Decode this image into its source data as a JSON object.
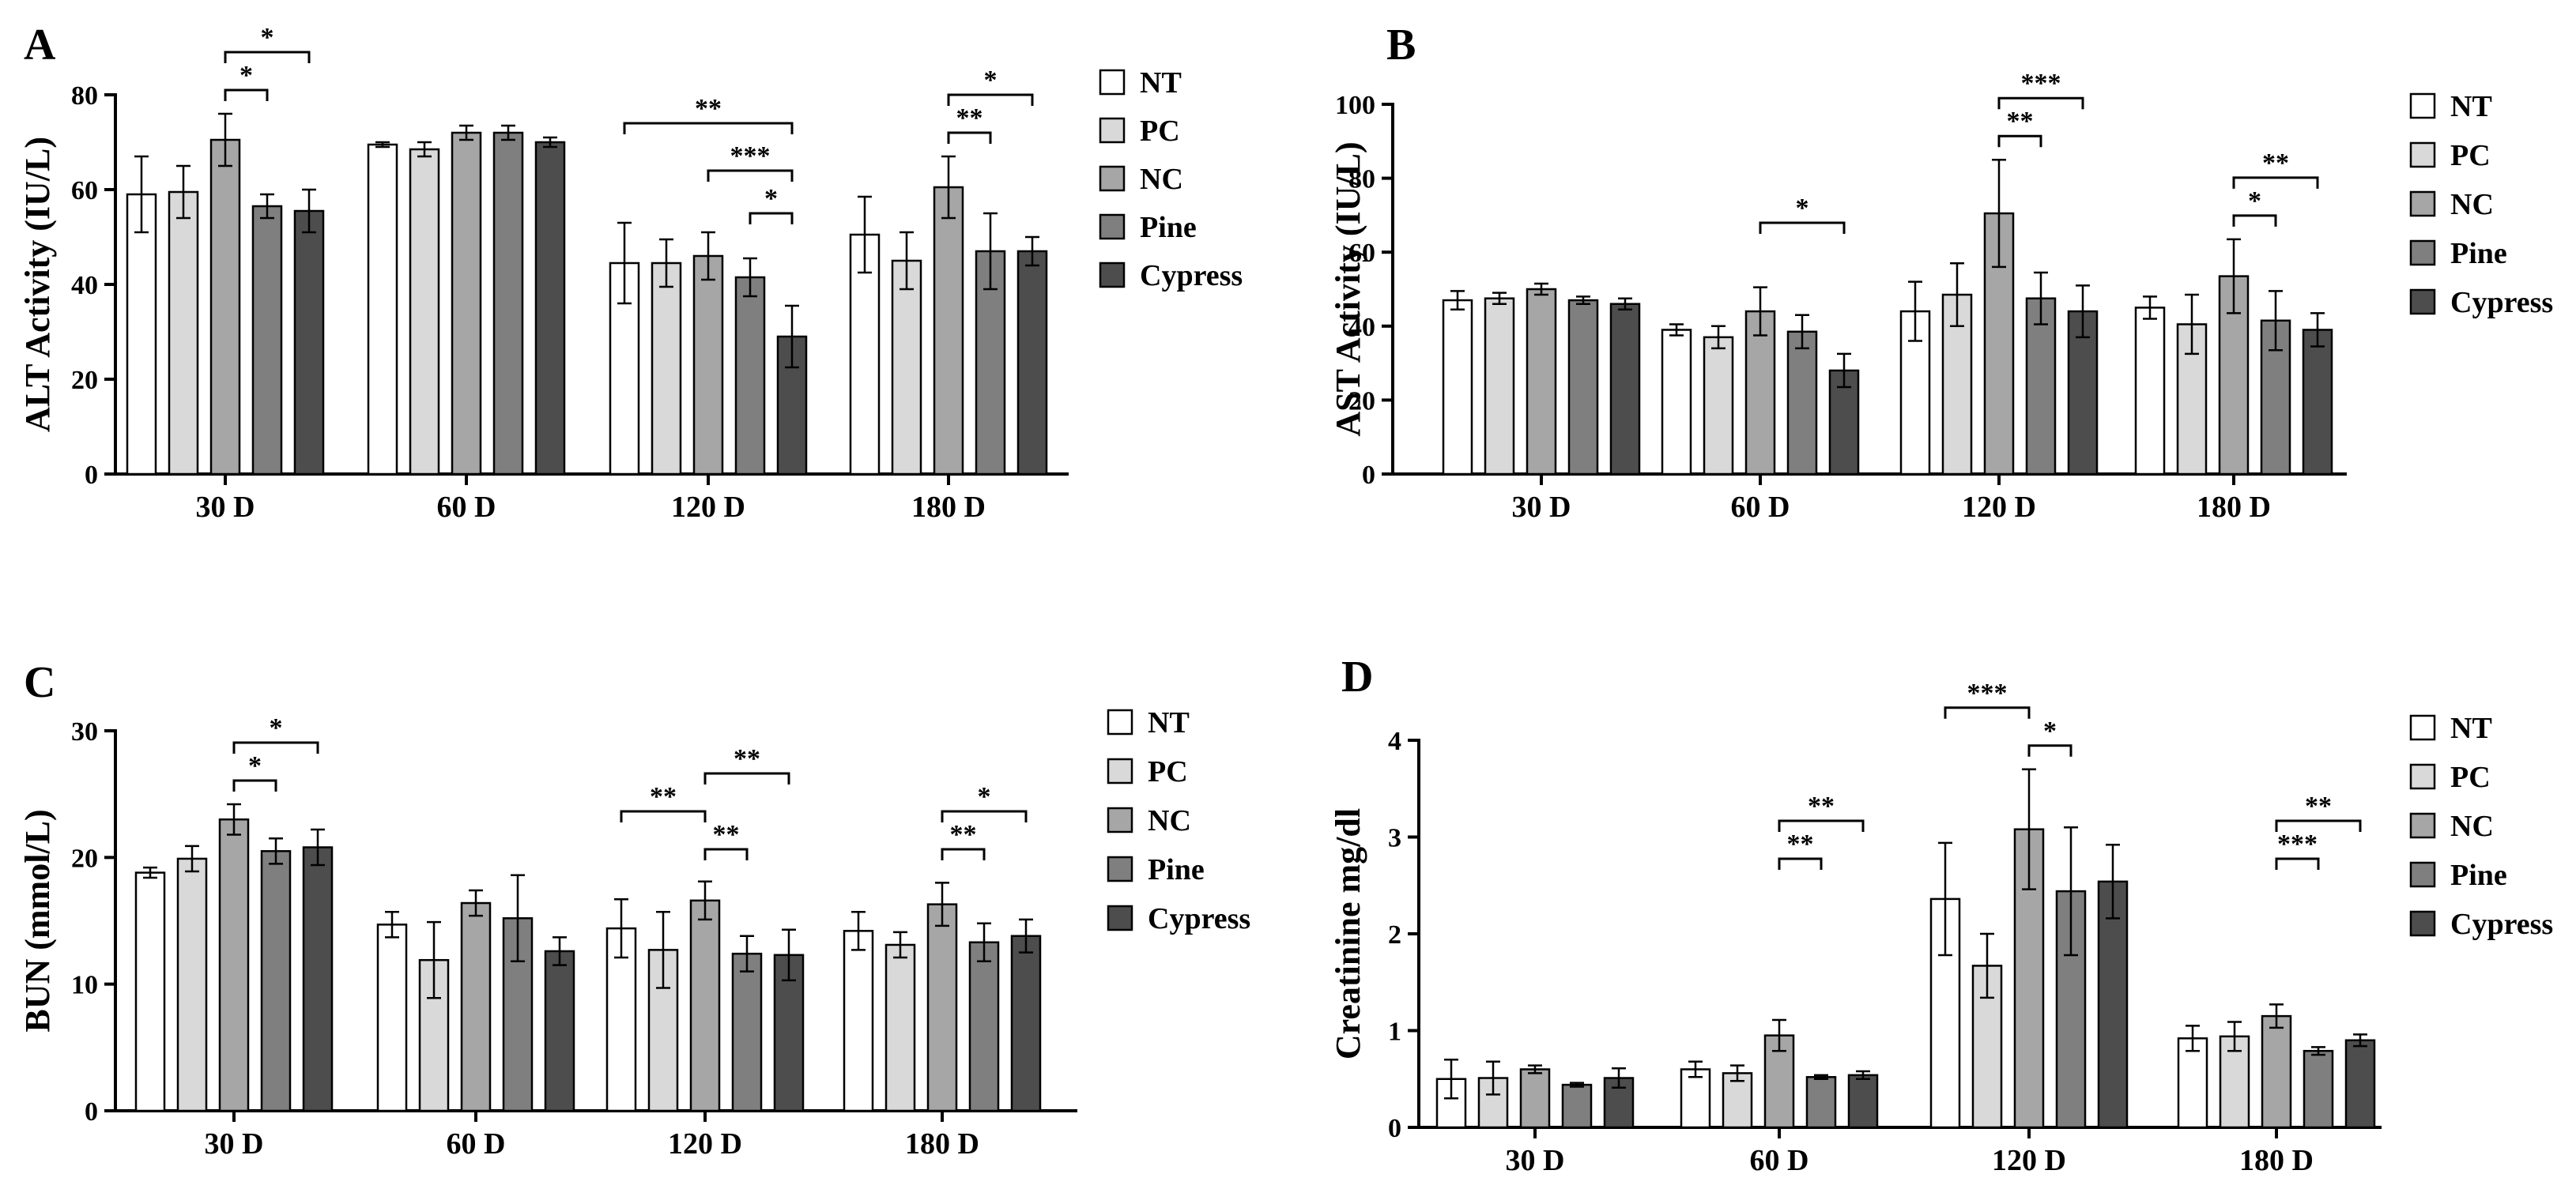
{
  "legend_series": [
    "NT",
    "PC",
    "NC",
    "Pine",
    "Cypress"
  ],
  "series_colors": [
    "#ffffff",
    "#d9d9d9",
    "#a6a6a6",
    "#7f7f7f",
    "#4d4d4d"
  ],
  "chart_data": [
    {
      "panel": "A",
      "type": "bar",
      "ylabel": "ALT Activity (IU/L)",
      "categories": [
        "30 D",
        "60 D",
        "120 D",
        "180 D"
      ],
      "ylim": [
        0,
        80
      ],
      "yticks": [
        0,
        20,
        40,
        60,
        80
      ],
      "grid": false,
      "legend_position": "right",
      "series": [
        {
          "name": "NT",
          "values": [
            59,
            69.5,
            44.5,
            50.5
          ],
          "errors": [
            8,
            0.5,
            8.5,
            8
          ]
        },
        {
          "name": "PC",
          "values": [
            59.5,
            68.5,
            44.5,
            45
          ],
          "errors": [
            5.5,
            1.5,
            5,
            6
          ]
        },
        {
          "name": "NC",
          "values": [
            70.5,
            72,
            46,
            60.5
          ],
          "errors": [
            5.5,
            1.5,
            5,
            6.5
          ]
        },
        {
          "name": "Pine",
          "values": [
            56.5,
            72,
            41.5,
            47
          ],
          "errors": [
            2.5,
            1.5,
            4,
            8
          ]
        },
        {
          "name": "Cypress",
          "values": [
            55.5,
            70,
            29,
            47
          ],
          "errors": [
            4.5,
            1,
            6.5,
            3
          ]
        }
      ],
      "significance": [
        {
          "category": 0,
          "from": 2,
          "to": 3,
          "label": "*"
        },
        {
          "category": 0,
          "from": 2,
          "to": 4,
          "label": "*"
        },
        {
          "category": 2,
          "from": 3,
          "to": 4,
          "label": "*"
        },
        {
          "category": 2,
          "from": 2,
          "to": 4,
          "label": "***"
        },
        {
          "category": 2,
          "from": 0,
          "to": 4,
          "label": "**"
        },
        {
          "category": 3,
          "from": 2,
          "to": 3,
          "label": "**"
        },
        {
          "category": 3,
          "from": 2,
          "to": 4,
          "label": "*"
        }
      ]
    },
    {
      "panel": "B",
      "type": "bar",
      "ylabel": "AST Activity (IU/L)",
      "categories": [
        "30 D",
        "60 D",
        "120 D",
        "180 D"
      ],
      "ylim": [
        0,
        100
      ],
      "yticks": [
        0,
        20,
        40,
        60,
        80,
        100
      ],
      "grid": false,
      "legend_position": "right",
      "series": [
        {
          "name": "NT",
          "values": [
            47,
            39,
            44,
            45
          ],
          "errors": [
            2.5,
            1.5,
            8,
            3
          ]
        },
        {
          "name": "PC",
          "values": [
            47.5,
            37,
            48.5,
            40.5
          ],
          "errors": [
            1.5,
            3,
            8.5,
            8
          ]
        },
        {
          "name": "NC",
          "values": [
            50,
            44,
            70.5,
            53.5
          ],
          "errors": [
            1.5,
            6.5,
            14.5,
            10
          ]
        },
        {
          "name": "Pine",
          "values": [
            47,
            38.5,
            47.5,
            41.5
          ],
          "errors": [
            1,
            4.5,
            7,
            8
          ]
        },
        {
          "name": "Cypress",
          "values": [
            46,
            28,
            44,
            39
          ],
          "errors": [
            1.5,
            4.5,
            7,
            4.5
          ]
        }
      ],
      "significance": [
        {
          "category": 1,
          "from": 2,
          "to": 4,
          "label": "*"
        },
        {
          "category": 2,
          "from": 2,
          "to": 3,
          "label": "**"
        },
        {
          "category": 2,
          "from": 2,
          "to": 4,
          "label": "***"
        },
        {
          "category": 3,
          "from": 2,
          "to": 3,
          "label": "*"
        },
        {
          "category": 3,
          "from": 2,
          "to": 4,
          "label": "**"
        }
      ]
    },
    {
      "panel": "C",
      "type": "bar",
      "ylabel": "BUN (mmol/L)",
      "categories": [
        "30 D",
        "60 D",
        "120 D",
        "180 D"
      ],
      "ylim": [
        0,
        30
      ],
      "yticks": [
        0,
        10,
        20,
        30
      ],
      "grid": false,
      "legend_position": "right",
      "series": [
        {
          "name": "NT",
          "values": [
            18.8,
            14.7,
            14.4,
            14.2
          ],
          "errors": [
            0.4,
            1,
            2.3,
            1.5
          ]
        },
        {
          "name": "PC",
          "values": [
            19.9,
            11.9,
            12.7,
            13.1
          ],
          "errors": [
            1,
            3,
            3,
            1
          ]
        },
        {
          "name": "NC",
          "values": [
            23,
            16.4,
            16.6,
            16.3
          ],
          "errors": [
            1.2,
            1,
            1.5,
            1.7
          ]
        },
        {
          "name": "Pine",
          "values": [
            20.5,
            15.2,
            12.4,
            13.3
          ],
          "errors": [
            1,
            3.4,
            1.4,
            1.5
          ]
        },
        {
          "name": "Cypress",
          "values": [
            20.8,
            12.6,
            12.3,
            13.8
          ],
          "errors": [
            1.4,
            1.1,
            2,
            1.3
          ]
        }
      ],
      "significance": [
        {
          "category": 0,
          "from": 2,
          "to": 3,
          "label": "*"
        },
        {
          "category": 0,
          "from": 2,
          "to": 4,
          "label": "*"
        },
        {
          "category": 2,
          "from": 0,
          "to": 2,
          "label": "**"
        },
        {
          "category": 2,
          "from": 2,
          "to": 3,
          "label": "**"
        },
        {
          "category": 2,
          "from": 2,
          "to": 4,
          "label": "**"
        },
        {
          "category": 3,
          "from": 2,
          "to": 3,
          "label": "**"
        },
        {
          "category": 3,
          "from": 2,
          "to": 4,
          "label": "*"
        }
      ]
    },
    {
      "panel": "D",
      "type": "bar",
      "ylabel": "Creatinine mg/dl",
      "categories": [
        "30 D",
        "60 D",
        "120 D",
        "180 D"
      ],
      "ylim": [
        0,
        4
      ],
      "yticks": [
        0,
        1,
        2,
        3,
        4
      ],
      "grid": false,
      "legend_position": "right",
      "series": [
        {
          "name": "NT",
          "values": [
            0.5,
            0.6,
            2.36,
            0.92
          ],
          "errors": [
            0.2,
            0.08,
            0.58,
            0.13
          ]
        },
        {
          "name": "PC",
          "values": [
            0.51,
            0.56,
            1.67,
            0.94
          ],
          "errors": [
            0.17,
            0.08,
            0.33,
            0.15
          ]
        },
        {
          "name": "NC",
          "values": [
            0.6,
            0.95,
            3.08,
            1.15
          ],
          "errors": [
            0.04,
            0.16,
            0.62,
            0.12
          ]
        },
        {
          "name": "Pine",
          "values": [
            0.44,
            0.52,
            2.44,
            0.79
          ],
          "errors": [
            0.02,
            0.02,
            0.66,
            0.04
          ]
        },
        {
          "name": "Cypress",
          "values": [
            0.51,
            0.54,
            2.54,
            0.9
          ],
          "errors": [
            0.1,
            0.04,
            0.38,
            0.06
          ]
        }
      ],
      "significance": [
        {
          "category": 1,
          "from": 2,
          "to": 3,
          "label": "**"
        },
        {
          "category": 1,
          "from": 2,
          "to": 4,
          "label": "**"
        },
        {
          "category": 2,
          "from": 0,
          "to": 2,
          "label": "***"
        },
        {
          "category": 2,
          "from": 2,
          "to": 3,
          "label": "*"
        },
        {
          "category": 3,
          "from": 2,
          "to": 3,
          "label": "***"
        },
        {
          "category": 3,
          "from": 2,
          "to": 4,
          "label": "**"
        }
      ]
    }
  ]
}
